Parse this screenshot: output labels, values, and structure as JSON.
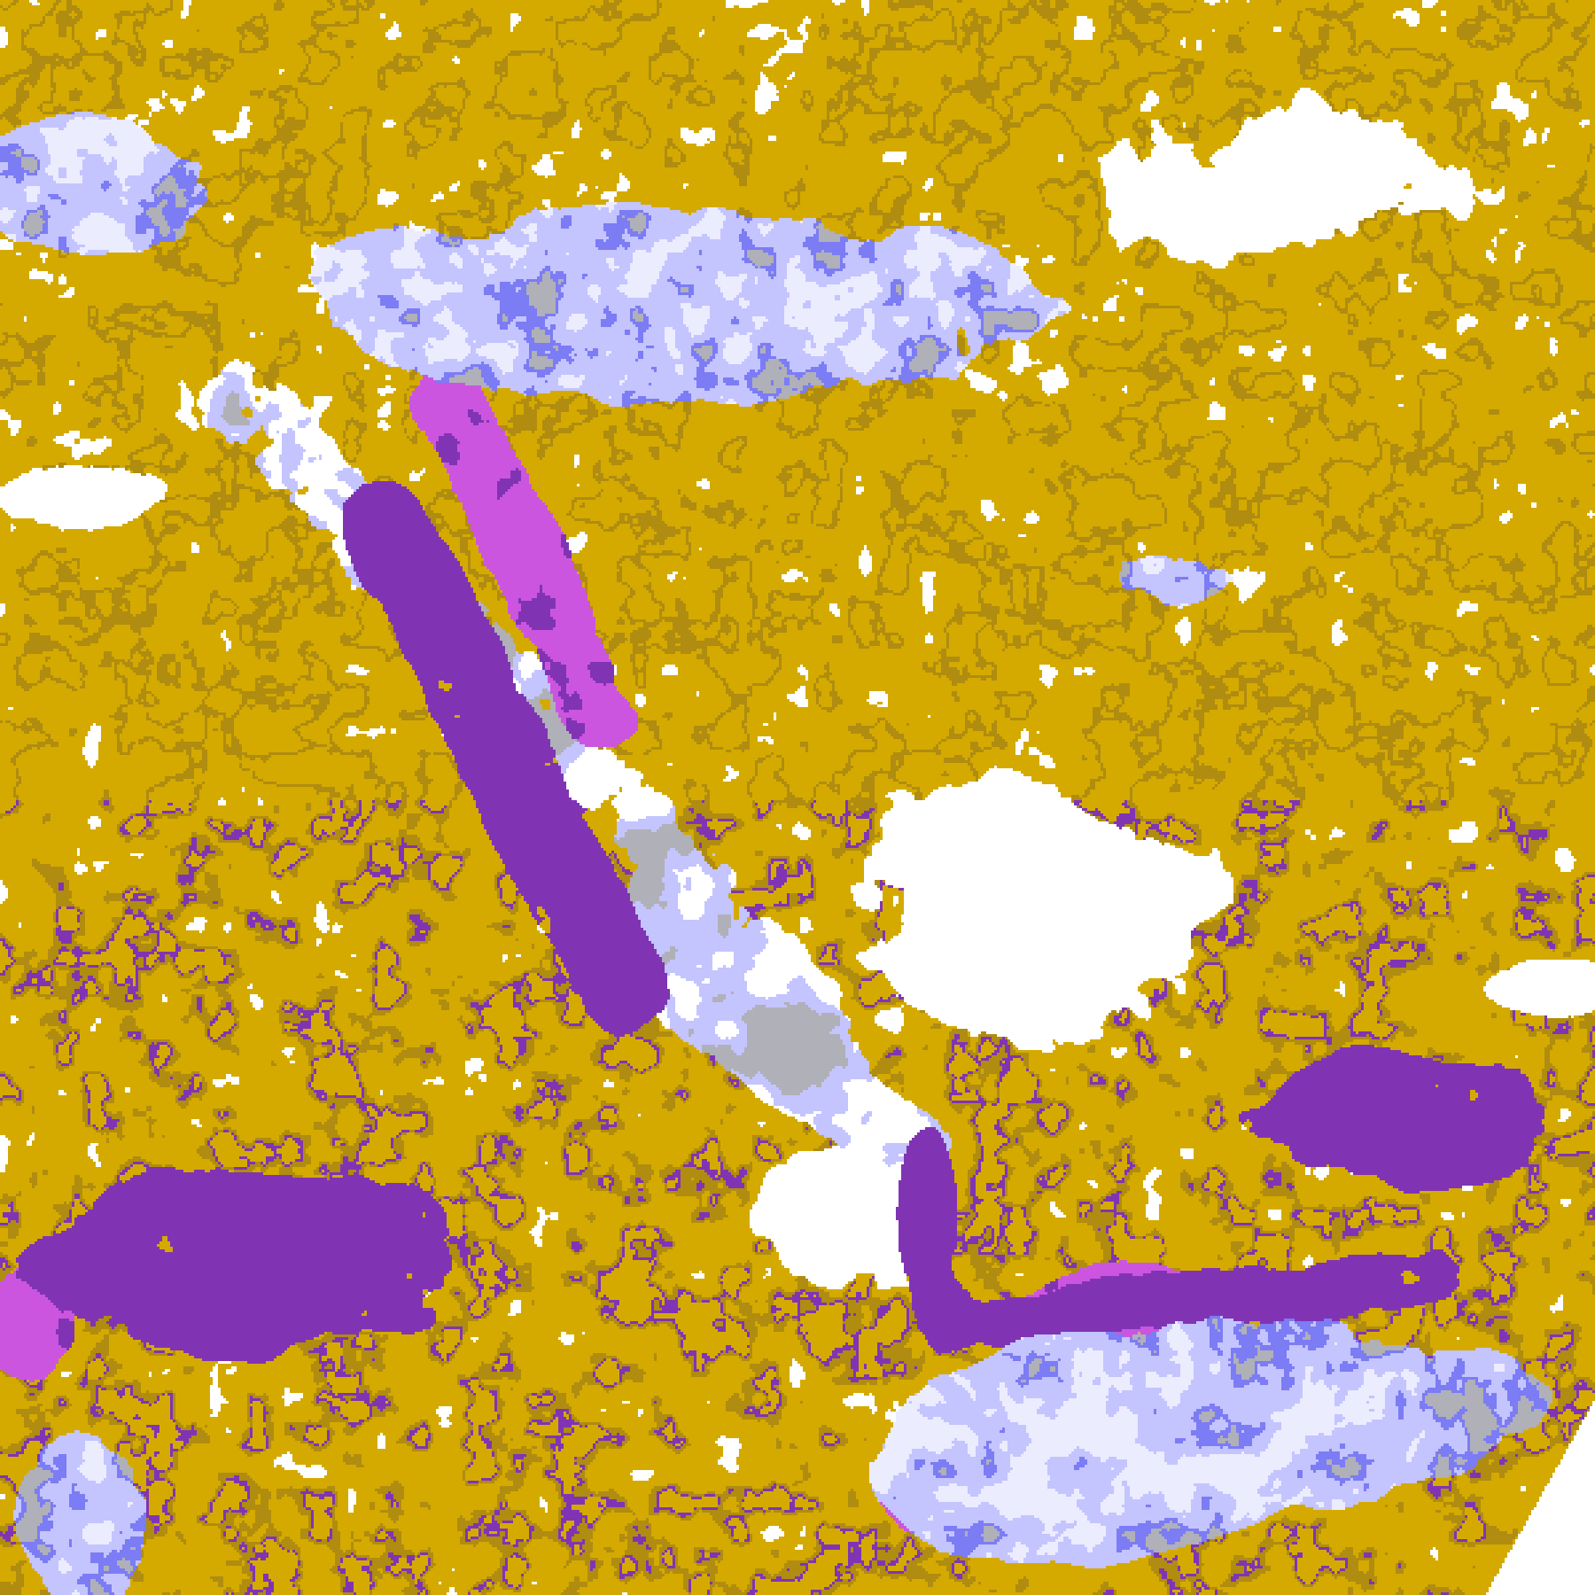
{
  "map": {
    "kind": "classified satellite cloud imagery",
    "palette": {
      "clear": "#ffffff",
      "gold": "#d4aa00",
      "dark_gold": "#b08c10",
      "purple": "#8034b4",
      "magenta": "#cc55e0",
      "periwinkle": "#7c7cf4",
      "lavender": "#c4c4ff",
      "pale": "#ececff",
      "gray": "#b0b0b8"
    }
  }
}
